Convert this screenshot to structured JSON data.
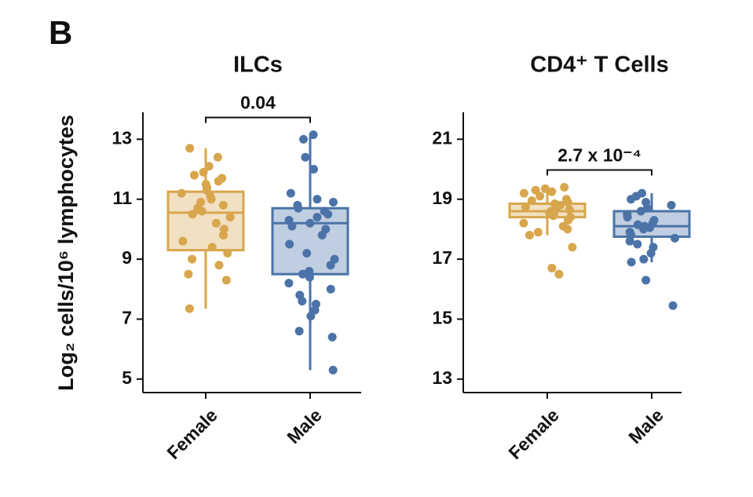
{
  "panel_label": "B",
  "ylabel": "Log₂ cells/10⁶ lymphocytes",
  "chart_data": [
    {
      "type": "box",
      "title": "ILCs",
      "annotation": "0.04",
      "categories": [
        "Female",
        "Male"
      ],
      "ylim": [
        4.55,
        13.9
      ],
      "yticks": [
        5,
        7,
        9,
        11,
        13
      ],
      "boxes": [
        {
          "color": "#d8a64c",
          "whisker_low": 7.35,
          "q1": 9.3,
          "median": 10.55,
          "q3": 11.25,
          "whisker_high": 12.7,
          "points": [
            12.7,
            12.4,
            12.1,
            11.9,
            11.8,
            11.7,
            11.6,
            11.5,
            11.4,
            11.3,
            11.2,
            11.1,
            11.0,
            10.9,
            10.8,
            10.7,
            10.6,
            10.5,
            10.4,
            10.2,
            10.0,
            9.8,
            9.6,
            9.4,
            9.2,
            9.0,
            8.8,
            8.5,
            8.3,
            7.35
          ]
        },
        {
          "color": "#4b73a8",
          "whisker_low": 5.3,
          "q1": 8.5,
          "median": 10.2,
          "q3": 10.7,
          "whisker_high": 13.1,
          "points": [
            13.15,
            13.0,
            12.4,
            12.0,
            11.2,
            11.0,
            10.9,
            10.8,
            10.7,
            10.6,
            10.5,
            10.4,
            10.3,
            10.2,
            10.0,
            9.8,
            9.5,
            9.2,
            9.0,
            8.8,
            8.6,
            8.5,
            8.4,
            8.2,
            8.0,
            7.8,
            7.6,
            7.5,
            7.3,
            7.1,
            6.6,
            6.4,
            5.3,
            10.1
          ]
        }
      ]
    },
    {
      "type": "box",
      "title": "CD4⁺ T Cells",
      "annotation": "2.7 x 10⁻⁴",
      "categories": [
        "Female",
        "Male"
      ],
      "ylim": [
        12.55,
        21.9
      ],
      "yticks": [
        13,
        15,
        17,
        19,
        21
      ],
      "boxes": [
        {
          "color": "#d8a64c",
          "whisker_low": 17.8,
          "q1": 18.4,
          "median": 18.6,
          "q3": 18.85,
          "whisker_high": 19.4,
          "points": [
            19.4,
            19.35,
            19.3,
            19.25,
            19.2,
            19.1,
            19.0,
            18.95,
            18.9,
            18.85,
            18.8,
            18.75,
            18.7,
            18.65,
            18.6,
            18.55,
            18.5,
            18.45,
            18.4,
            18.3,
            18.2,
            18.1,
            18.0,
            17.9,
            17.8,
            17.4,
            16.7,
            16.5
          ]
        },
        {
          "color": "#4b73a8",
          "whisker_low": 16.9,
          "q1": 17.75,
          "median": 18.1,
          "q3": 18.6,
          "whisker_high": 19.2,
          "points": [
            19.2,
            19.1,
            19.0,
            18.9,
            18.8,
            18.7,
            18.6,
            18.5,
            18.4,
            18.3,
            18.2,
            18.1,
            18.0,
            17.9,
            17.8,
            17.7,
            17.6,
            17.5,
            17.4,
            17.2,
            17.0,
            16.9,
            16.3,
            15.45,
            18.05,
            18.15
          ]
        }
      ]
    }
  ]
}
